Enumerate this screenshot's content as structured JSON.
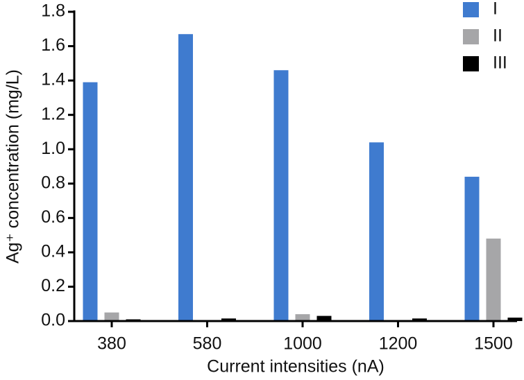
{
  "chart_data": {
    "type": "bar",
    "xlabel": "Current intensities (nA)",
    "ylabel": "Ag⁺ concentration (mg/L)",
    "categories": [
      "380",
      "580",
      "1000",
      "1200",
      "1500"
    ],
    "series": [
      {
        "name": "I",
        "color": "#3f7bcf",
        "values": [
          1.39,
          1.67,
          1.46,
          1.04,
          0.84
        ]
      },
      {
        "name": "II",
        "color": "#a6a6a8",
        "values": [
          0.05,
          0.005,
          0.04,
          0,
          0.48
        ]
      },
      {
        "name": "III",
        "color": "#000000",
        "values": [
          0.01,
          0.015,
          0.03,
          0.015,
          0.02
        ]
      }
    ],
    "ylim": [
      0,
      1.8
    ],
    "yticks": [
      {
        "value": 0,
        "label": "0.0"
      },
      0.2,
      0.4,
      0.6,
      0.8,
      {
        "value": 1,
        "label": "1.0"
      },
      1.2,
      1.4,
      1.6,
      1.8
    ],
    "legend": "top-right",
    "grid": false
  }
}
